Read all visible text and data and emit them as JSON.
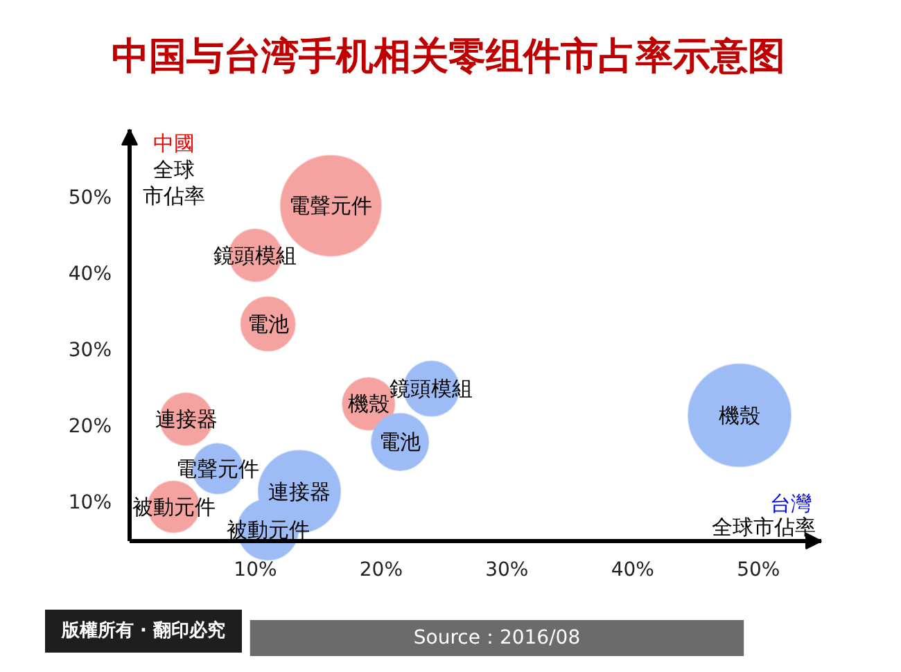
{
  "chart_data": {
    "type": "bubble",
    "title": "中国与台湾手机相关零组件市占率示意图",
    "xlabel": "台灣全球市佔率",
    "ylabel": "中國全球市佔率",
    "xlim": [
      0,
      55
    ],
    "ylim": [
      5,
      59
    ],
    "xticks": [
      {
        "value": 10,
        "label": "10%"
      },
      {
        "value": 20,
        "label": "20%"
      },
      {
        "value": 30,
        "label": "30%"
      },
      {
        "value": 40,
        "label": "40%"
      },
      {
        "value": 50,
        "label": "50%"
      }
    ],
    "yticks": [
      {
        "value": 10,
        "label": "10%"
      },
      {
        "value": 20,
        "label": "20%"
      },
      {
        "value": 30,
        "label": "30%"
      },
      {
        "value": 40,
        "label": "40%"
      },
      {
        "value": 50,
        "label": "50%"
      }
    ],
    "series": [
      {
        "color": "#f5a3a0",
        "x": [
          16,
          10,
          11,
          4.5,
          3.5,
          19
        ],
        "values": [
          49,
          42.5,
          33.5,
          21,
          9.5,
          23
        ],
        "sizes": [
          0.96,
          0.26,
          0.28,
          0.26,
          0.25,
          0.26
        ],
        "value_labels": [
          "電聲元件",
          "鏡頭模組",
          "電池",
          "連接器",
          "被動元件",
          "機殼"
        ]
      },
      {
        "color": "#9dbcf5",
        "x": [
          24,
          21.5,
          7,
          13.5,
          11,
          48.5
        ],
        "values": [
          25,
          18,
          14.5,
          11.5,
          6.5,
          21.5
        ],
        "sizes": [
          0.29,
          0.31,
          0.24,
          0.64,
          0.35,
          1
        ],
        "value_labels": [
          "鏡頭模組",
          "電池",
          "電聲元件",
          "連接器",
          "被動元件",
          "機殼"
        ]
      }
    ],
    "annotations": [
      "版權所有 · 翻印必究",
      "Source：2016/08"
    ]
  }
}
